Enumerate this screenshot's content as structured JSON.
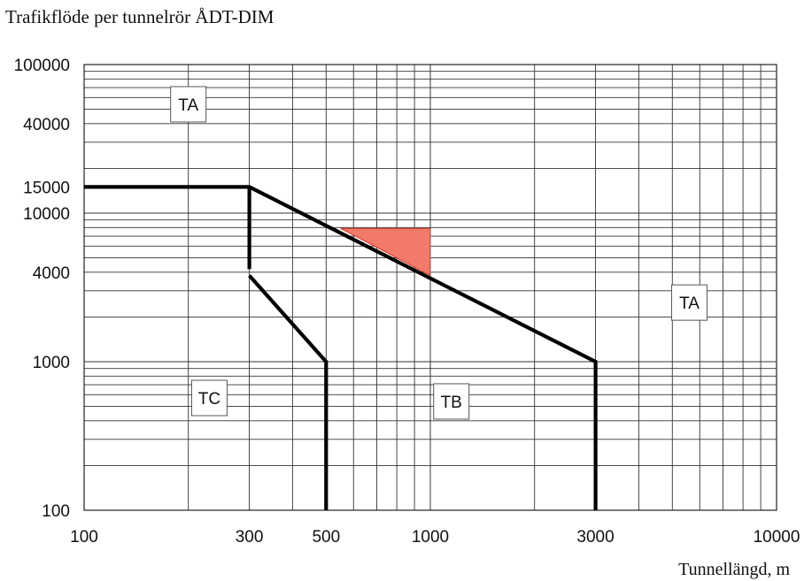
{
  "chart_data": {
    "type": "line",
    "title": "Trafikflöde per tunnelrör ÅDT-DIM",
    "xlabel": "Tunnellängd, m",
    "ylabel": "",
    "x_scale": "log",
    "y_scale": "log",
    "xlim": [
      100,
      10000
    ],
    "ylim": [
      100,
      100000
    ],
    "grid": true,
    "x_ticks": [
      {
        "value": 100,
        "label": "100"
      },
      {
        "value": 300,
        "label": "300"
      },
      {
        "value": 500,
        "label": "500"
      },
      {
        "value": 1000,
        "label": "1000"
      },
      {
        "value": 3000,
        "label": "3000"
      },
      {
        "value": 10000,
        "label": "10000"
      }
    ],
    "y_ticks": [
      {
        "value": 100,
        "label": "100"
      },
      {
        "value": 1000,
        "label": "1000"
      },
      {
        "value": 4000,
        "label": "4000"
      },
      {
        "value": 10000,
        "label": "10000"
      },
      {
        "value": 15000,
        "label": "15000"
      },
      {
        "value": 40000,
        "label": "40000"
      },
      {
        "value": 100000,
        "label": "100000"
      }
    ],
    "series": [
      {
        "x": [
          100,
          300,
          3000,
          3000
        ],
        "y": [
          15000,
          15000,
          1000,
          100
        ],
        "color": "#000000"
      },
      {
        "x": [
          300,
          300
        ],
        "y": [
          15000,
          4200
        ],
        "color": "#000000"
      },
      {
        "x": [
          300,
          500,
          500
        ],
        "y": [
          3800,
          1000,
          100
        ],
        "color": "#000000"
      }
    ],
    "highlight_area": {
      "points": [
        [
          550,
          7900
        ],
        [
          1000,
          7900
        ],
        [
          1000,
          3800
        ]
      ],
      "color": "#f27a6a"
    },
    "annotations": [
      {
        "text": "TA",
        "x": 200,
        "y": 54000
      },
      {
        "text": "TA",
        "x": 5600,
        "y": 2500
      },
      {
        "text": "TC",
        "x": 230,
        "y": 570
      },
      {
        "text": "TB",
        "x": 1150,
        "y": 540
      }
    ]
  }
}
